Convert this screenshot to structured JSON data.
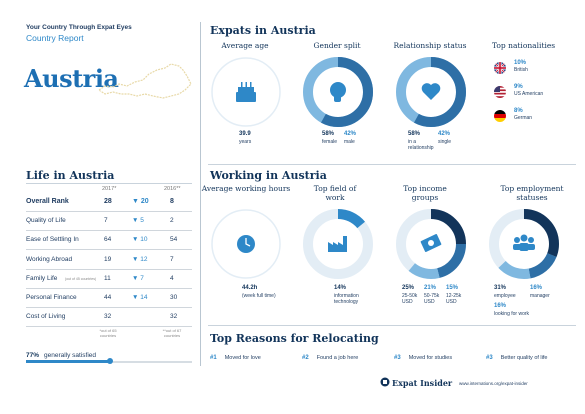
{
  "header": {
    "brand": "Your Country Through Expat Eyes",
    "subtitle": "Country Report",
    "country": "Austria"
  },
  "expats": {
    "title": "Expats in Austria",
    "average_age": {
      "title": "Average age",
      "value": "39.9",
      "unit": "years"
    },
    "gender": {
      "title": "Gender split",
      "female_pct": "58%",
      "female_label": "female",
      "male_pct": "42%",
      "male_label": "male"
    },
    "relationship": {
      "title": "Relationship status",
      "in_pct": "58%",
      "in_label": "in a relationship",
      "single_pct": "42%",
      "single_label": "single"
    },
    "nationalities": {
      "title": "Top nationalities",
      "items": [
        {
          "pct": "10%",
          "name": "British",
          "flag": "uk-flag-icon"
        },
        {
          "pct": "9%",
          "name": "US American",
          "flag": "us-flag-icon"
        },
        {
          "pct": "8%",
          "name": "German",
          "flag": "de-flag-icon"
        }
      ]
    }
  },
  "life": {
    "title": "Life in Austria",
    "col_2017": "2017*",
    "col_2016": "2016**",
    "rows": [
      {
        "label": "Overall Rank",
        "v2017": "28",
        "change": "▼ 20",
        "v2016": "8"
      },
      {
        "label": "Quality of Life",
        "v2017": "7",
        "change": "▼ 5",
        "v2016": "2"
      },
      {
        "label": "Ease of Settling In",
        "v2017": "64",
        "change": "▼ 10",
        "v2016": "54"
      },
      {
        "label": "Working Abroad",
        "v2017": "19",
        "change": "▼ 12",
        "v2016": "7"
      },
      {
        "label": "Family Life",
        "sub": "(out of 45 countries)",
        "v2017": "11",
        "change": "▼ 7",
        "v2016": "4"
      },
      {
        "label": "Personal Finance",
        "v2017": "44",
        "change": "▼ 14",
        "v2016": "30"
      },
      {
        "label": "Cost of Living",
        "v2017": "32",
        "change": "",
        "v2016": "32"
      }
    ],
    "note_2017": "*out of 65 countries",
    "note_2016": "**out of 67 countries",
    "satisfied_pct": "77%",
    "satisfied_label": "generally satisfied",
    "satisfied_fraction": 0.77
  },
  "working": {
    "title": "Working in Austria",
    "hours": {
      "title": "Average working hours",
      "value": "44.2h",
      "unit": "(week full time)"
    },
    "field": {
      "title": "Top field of work",
      "pct": "14%",
      "label": "information technology"
    },
    "income": {
      "title": "Top income groups",
      "groups": [
        {
          "pct": "25%",
          "label": "25-50k USD"
        },
        {
          "pct": "21%",
          "label": "50-75k USD"
        },
        {
          "pct": "15%",
          "label": "12-25k USD"
        }
      ]
    },
    "employment": {
      "title": "Top employment statuses",
      "items": [
        {
          "pct": "31%",
          "label": "employee"
        },
        {
          "pct": "16%",
          "label": "manager"
        },
        {
          "pct": "16%",
          "label": "looking for work"
        }
      ]
    }
  },
  "reasons": {
    "title": "Top Reasons for Relocating",
    "items": [
      {
        "num": "#1",
        "label": "Moved for love"
      },
      {
        "num": "#2",
        "label": "Found a job here"
      },
      {
        "num": "#3",
        "label": "Moved for studies"
      },
      {
        "num": "#3",
        "label": "Better quality of life"
      }
    ]
  },
  "footer": {
    "logo": "Expat Insider",
    "url": "www.internations.org/expat-insider"
  },
  "colors": {
    "navy": "#12345a",
    "blue": "#2e88c8",
    "light_blue": "#7fb8e0",
    "dark_ring": "#1d5a8a"
  }
}
